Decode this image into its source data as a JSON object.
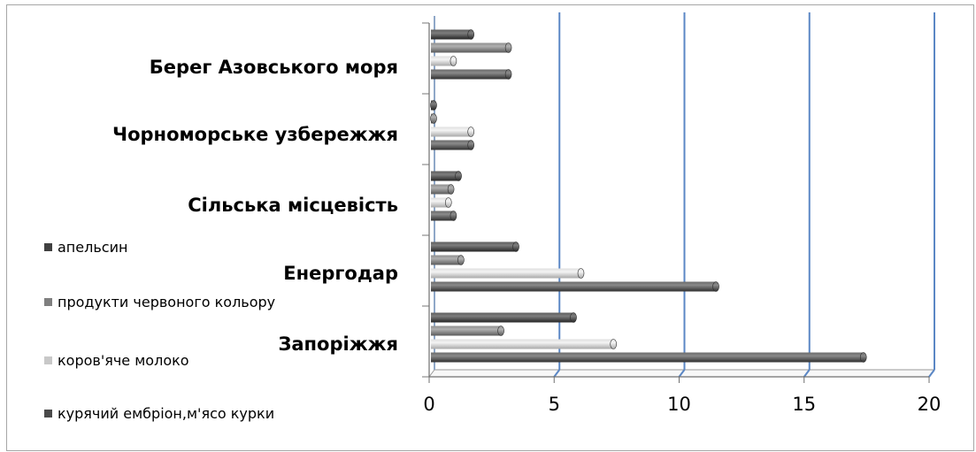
{
  "chart_data": {
    "type": "bar",
    "orientation": "horizontal",
    "style": "3d-cylinder",
    "categories": [
      "Запоріжжя",
      "Енергодар",
      "Сільська місцевість",
      "Чорноморське узбережжя",
      "Берег Азовського моря"
    ],
    "series": [
      {
        "name": "курячий ембріон,м'ясо курки",
        "color": "#4a4a4a",
        "values": [
          17.3,
          11.4,
          0.9,
          1.6,
          3.1
        ]
      },
      {
        "name": "коров'яче молоко",
        "color": "#c8c8c8",
        "values": [
          7.3,
          6.0,
          0.7,
          1.6,
          0.9
        ]
      },
      {
        "name": "продукти червоного кольору",
        "color": "#7f7f7f",
        "values": [
          2.8,
          1.2,
          0.8,
          0.1,
          3.1
        ]
      },
      {
        "name": "апельсин",
        "color": "#404040",
        "values": [
          5.7,
          3.4,
          1.1,
          0.1,
          1.6
        ]
      }
    ],
    "xlim": [
      0,
      20
    ],
    "xticks": [
      "0",
      "5",
      "10",
      "15",
      "20"
    ],
    "grid": true,
    "legend_position": "left"
  }
}
